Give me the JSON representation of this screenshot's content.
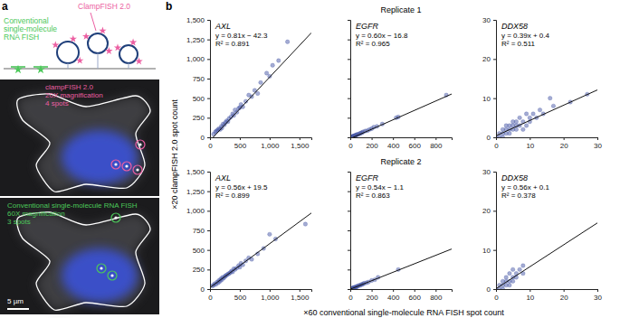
{
  "chart_data": [
    {
      "type": "scatter",
      "title": "AXL",
      "annotations": [
        "y = 0.81x − 42.3",
        "R² = 0.891"
      ],
      "fit": {
        "slope": 0.81,
        "intercept": -42.3
      },
      "color": "#4a5aa8",
      "x": [
        60,
        90,
        110,
        130,
        150,
        170,
        190,
        200,
        220,
        240,
        260,
        280,
        300,
        320,
        350,
        380,
        400,
        420,
        450,
        480,
        500,
        520,
        550,
        600,
        650,
        700,
        750,
        800,
        850,
        950,
        1000,
        1050,
        1150,
        1300
      ],
      "values": [
        40,
        70,
        80,
        95,
        110,
        100,
        140,
        120,
        170,
        160,
        190,
        210,
        200,
        240,
        260,
        300,
        280,
        350,
        320,
        370,
        380,
        420,
        390,
        460,
        540,
        520,
        600,
        560,
        700,
        820,
        780,
        920,
        980,
        1220
      ],
      "xlim": [
        0,
        1700
      ],
      "ylim": [
        0,
        1500
      ],
      "xticks": [
        0,
        500,
        {
          "value": 1000,
          "label": "1,000"
        },
        {
          "value": 1500,
          "label": "1,500"
        }
      ],
      "yticks": [
        0,
        250,
        500,
        750,
        {
          "value": 1000,
          "label": "1,000"
        },
        {
          "value": 1250,
          "label": "1,250"
        },
        {
          "value": 1500,
          "label": "1,500"
        }
      ]
    },
    {
      "type": "scatter",
      "title": "EGFR",
      "annotations": [
        "y = 0.60x − 16.8",
        "R² = 0.965"
      ],
      "fit": {
        "slope": 0.6,
        "intercept": -16.8
      },
      "color": "#4a5aa8",
      "x": [
        10,
        15,
        20,
        25,
        30,
        35,
        40,
        45,
        50,
        55,
        60,
        70,
        80,
        90,
        100,
        110,
        120,
        140,
        160,
        180,
        200,
        220,
        250,
        300,
        430,
        450,
        900
      ],
      "values": [
        5,
        8,
        10,
        12,
        15,
        20,
        18,
        25,
        22,
        30,
        35,
        38,
        40,
        50,
        55,
        60,
        70,
        80,
        85,
        100,
        110,
        130,
        140,
        170,
        250,
        260,
        540
      ],
      "xlim": [
        0,
        950
      ],
      "ylim": [
        0,
        1500
      ],
      "tick_labels": "x",
      "xticks": [
        0,
        200,
        400,
        600,
        800
      ],
      "yticks": [
        0,
        250,
        500,
        750,
        1000,
        1250,
        1500
      ]
    },
    {
      "type": "scatter",
      "title": "DDX58",
      "annotations": [
        "y = 0.39x + 0.4",
        "R² = 0.511"
      ],
      "fit": {
        "slope": 0.39,
        "intercept": 0.4
      },
      "color": "#4a5aa8",
      "x": [
        0,
        1,
        1,
        2,
        2,
        2,
        3,
        3,
        3,
        4,
        4,
        4,
        5,
        5,
        5,
        6,
        6,
        6,
        7,
        7,
        8,
        8,
        9,
        9,
        10,
        10,
        11,
        12,
        13,
        14,
        16,
        17,
        22,
        27
      ],
      "values": [
        0,
        0,
        1,
        0,
        1,
        2,
        1,
        2,
        3,
        1,
        2,
        3,
        2,
        3,
        4,
        2,
        3,
        4,
        3,
        5,
        2,
        4,
        3,
        6,
        4,
        5,
        6,
        5,
        7,
        6,
        10,
        8,
        9,
        11
      ],
      "xlim": [
        0,
        30
      ],
      "ylim": [
        0,
        30
      ],
      "xticks": [
        0,
        10,
        20,
        30
      ],
      "yticks": [
        0,
        10,
        20,
        30
      ]
    },
    {
      "type": "scatter",
      "title": "AXL",
      "annotations": [
        "y = 0.56x + 19.5",
        "R² = 0.899"
      ],
      "fit": {
        "slope": 0.56,
        "intercept": 19.5
      },
      "color": "#4a5aa8",
      "x": [
        40,
        60,
        80,
        100,
        120,
        140,
        150,
        170,
        180,
        200,
        210,
        230,
        250,
        260,
        280,
        300,
        320,
        340,
        360,
        380,
        400,
        420,
        450,
        480,
        500,
        520,
        550,
        600,
        650,
        700,
        800,
        900,
        1000,
        1100,
        1600
      ],
      "values": [
        40,
        50,
        70,
        60,
        90,
        80,
        110,
        100,
        130,
        120,
        150,
        140,
        160,
        170,
        180,
        190,
        200,
        210,
        230,
        220,
        260,
        250,
        270,
        300,
        280,
        330,
        310,
        360,
        400,
        380,
        450,
        520,
        700,
        640,
        830
      ],
      "xlim": [
        0,
        1700
      ],
      "ylim": [
        0,
        1500
      ],
      "xticks": [
        0,
        500,
        {
          "value": 1000,
          "label": "1,000"
        },
        {
          "value": 1500,
          "label": "1,500"
        }
      ],
      "yticks": [
        0,
        250,
        500,
        750,
        {
          "value": 1000,
          "label": "1,000"
        },
        {
          "value": 1250,
          "label": "1,250"
        },
        {
          "value": 1500,
          "label": "1,500"
        }
      ]
    },
    {
      "type": "scatter",
      "title": "EGFR",
      "annotations": [
        "y = 0.54x − 1.1",
        "R² = 0.863"
      ],
      "fit": {
        "slope": 0.54,
        "intercept": -1.1
      },
      "color": "#4a5aa8",
      "x": [
        10,
        15,
        20,
        25,
        30,
        35,
        40,
        50,
        55,
        60,
        70,
        80,
        90,
        100,
        110,
        120,
        130,
        150,
        170,
        200,
        230,
        260,
        450
      ],
      "values": [
        5,
        10,
        8,
        15,
        14,
        20,
        22,
        25,
        30,
        28,
        40,
        45,
        48,
        55,
        60,
        65,
        75,
        80,
        90,
        110,
        120,
        150,
        250
      ],
      "xlim": [
        0,
        950
      ],
      "ylim": [
        0,
        1500
      ],
      "tick_labels": "x",
      "xticks": [
        0,
        200,
        400,
        600,
        800
      ],
      "yticks": [
        0,
        250,
        500,
        750,
        1000,
        1250,
        1500
      ]
    },
    {
      "type": "scatter",
      "title": "DDX58",
      "annotations": [
        "y = 0.56x + 0.1",
        "R² = 0.378"
      ],
      "fit": {
        "slope": 0.56,
        "intercept": 0.1
      },
      "color": "#4a5aa8",
      "x": [
        0,
        1,
        1,
        2,
        2,
        2,
        3,
        3,
        3,
        4,
        4,
        4,
        5,
        5,
        5,
        6,
        6,
        7,
        8,
        8
      ],
      "values": [
        0,
        0,
        1,
        0,
        1,
        2,
        1,
        2,
        3,
        1,
        2,
        4,
        2,
        3,
        5,
        3,
        4,
        5,
        4,
        6
      ],
      "xlim": [
        0,
        30
      ],
      "ylim": [
        0,
        30
      ],
      "xticks": [
        0,
        10,
        20,
        30
      ],
      "yticks": [
        0,
        10,
        20,
        30
      ]
    }
  ],
  "figure": {
    "panel_label": "b",
    "replicates": [
      "Replicate 1",
      "Replicate 2"
    ],
    "x_label": "×60 conventional single-molecule RNA FISH spot count",
    "y_label": "×20 clampFISH 2.0 spot count"
  },
  "panel_a": {
    "label": "a",
    "smfish_label": [
      "Conventional",
      "single-molecule",
      "RNA FISH"
    ],
    "clampfish_label": "ClampFISH 2.0",
    "images": [
      {
        "lines": [
          "clampFISH 2.0",
          "20X magnification",
          "4 spots"
        ],
        "color": "#ec5fa2"
      },
      {
        "lines": [
          "Conventional single-molecule RNA FISH",
          "60X magnification",
          "3 spots"
        ],
        "color": "#4cc85a"
      }
    ],
    "scale_bar": "5 µm"
  }
}
